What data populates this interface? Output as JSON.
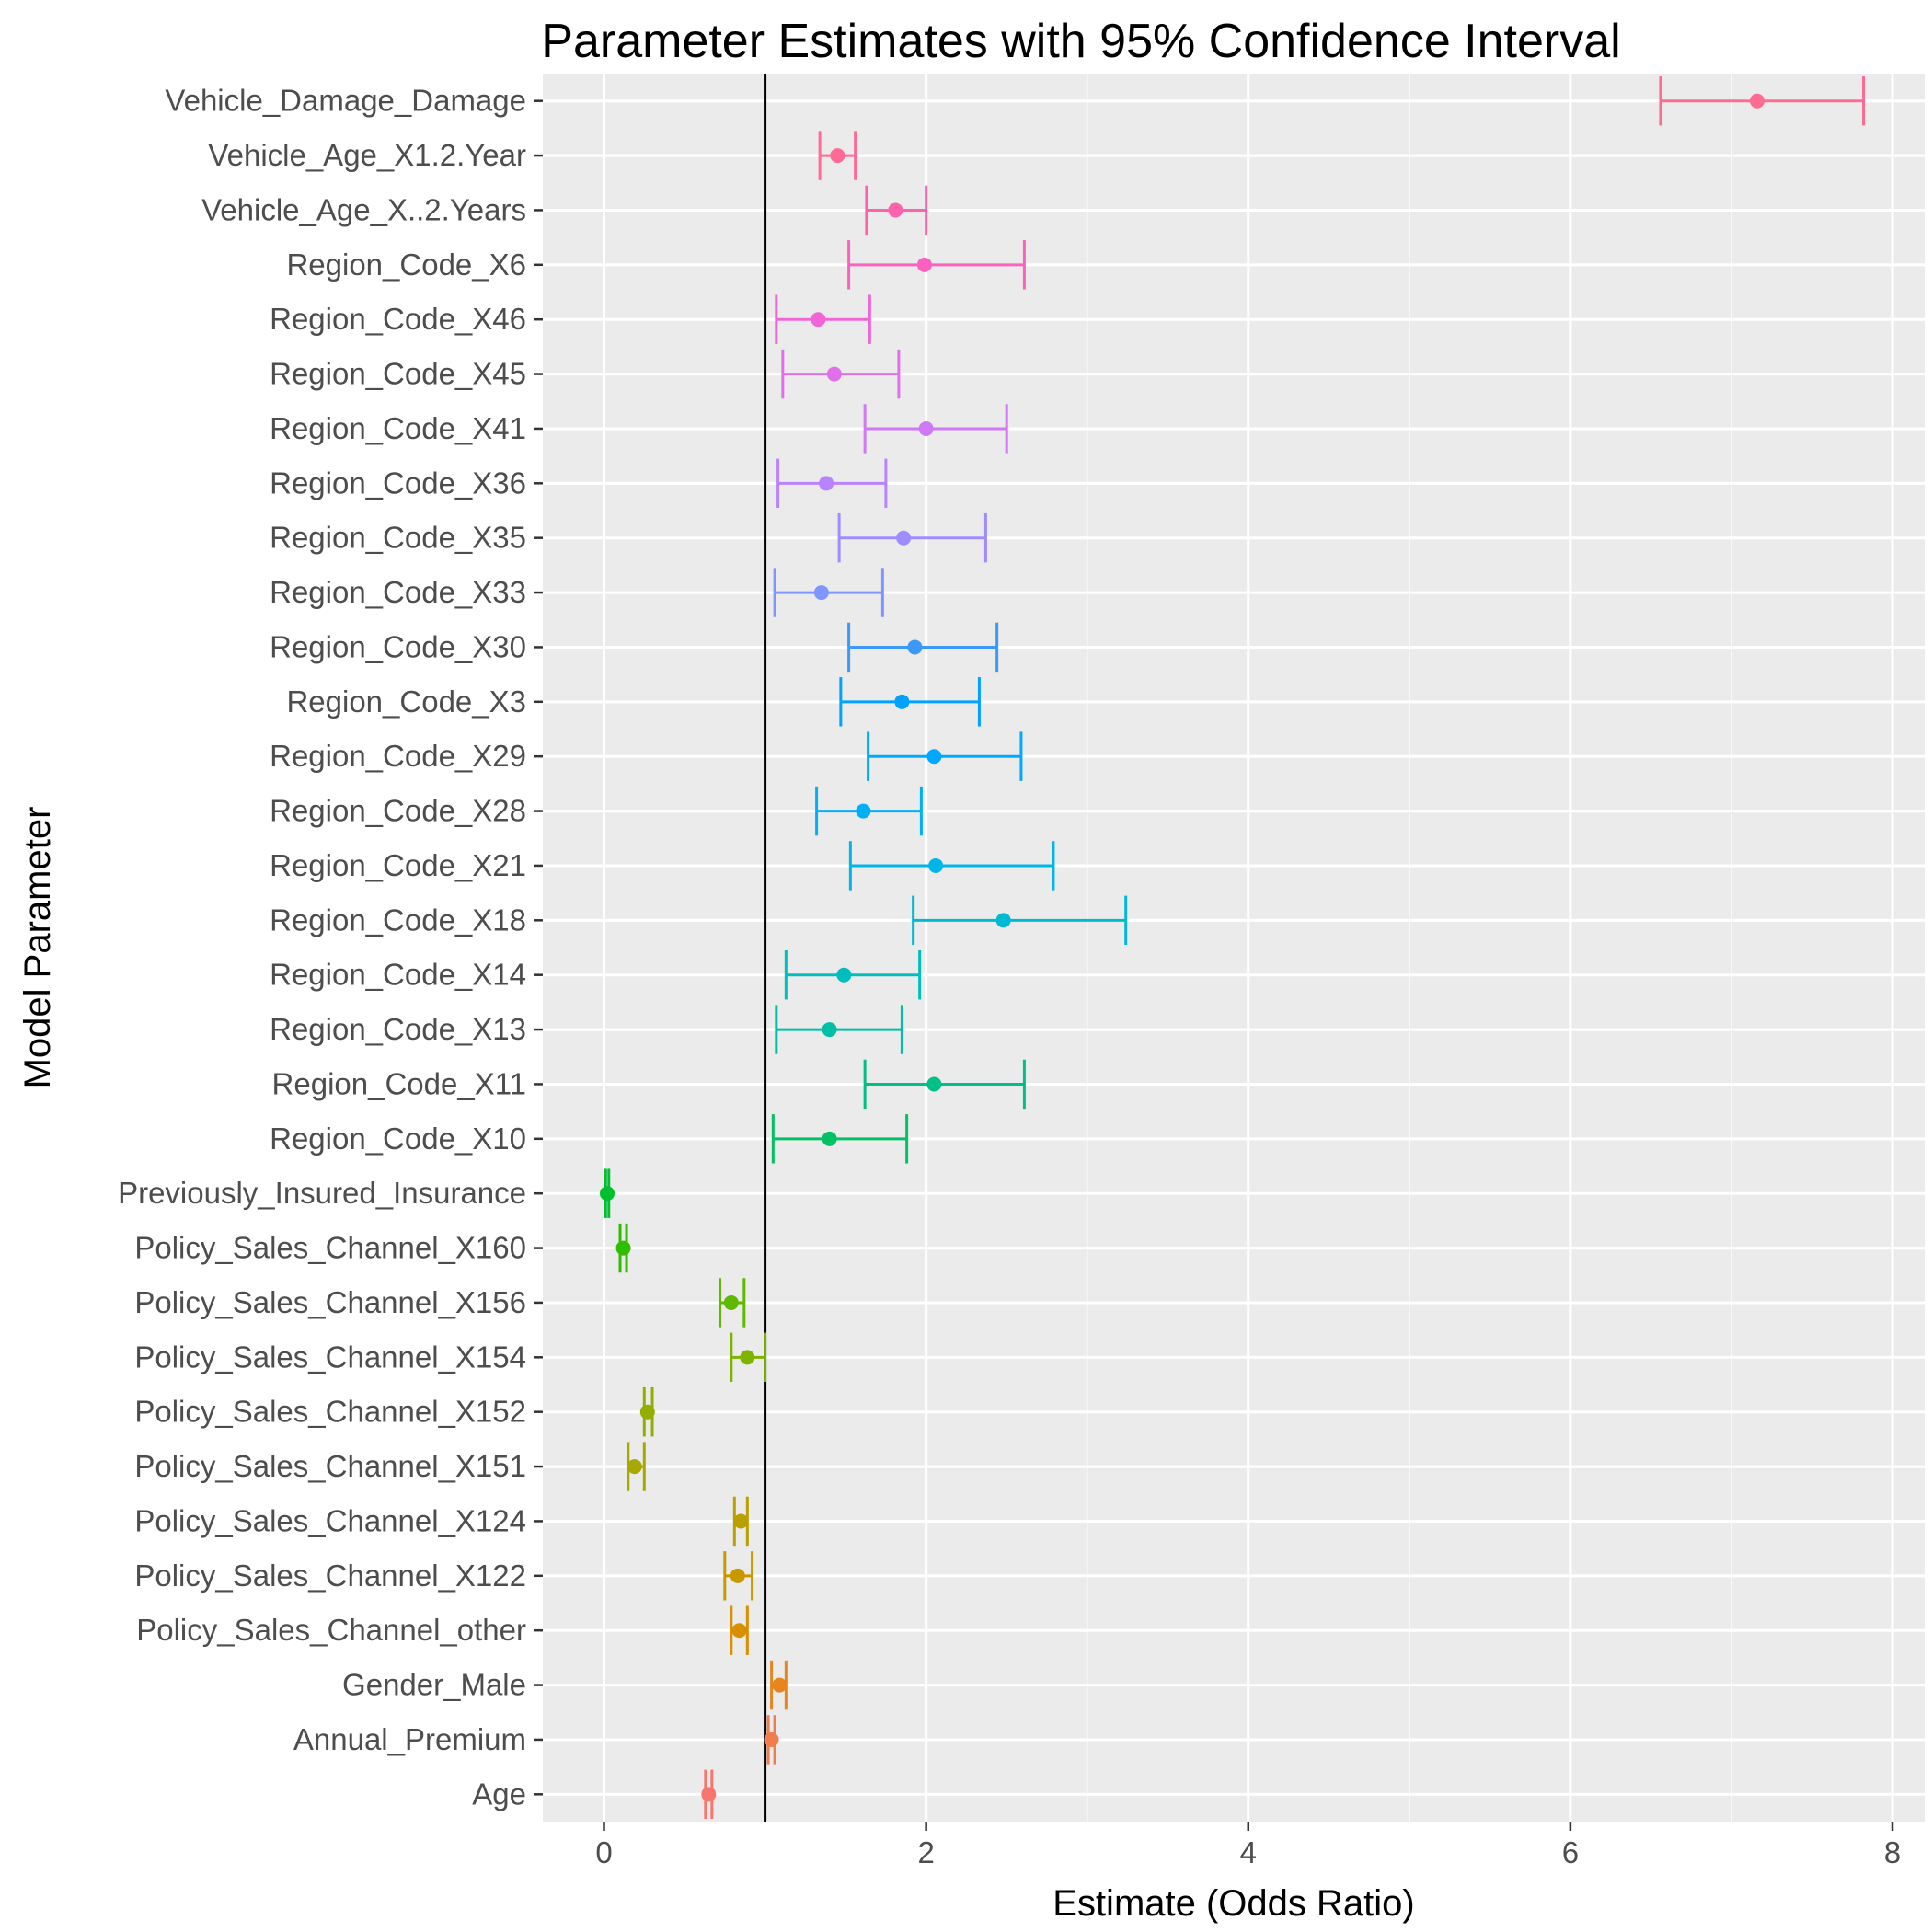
{
  "chart_data": {
    "type": "errorbar",
    "title": "Parameter Estimates with 95% Confidence Interval",
    "xlabel": "Estimate (Odds Ratio)",
    "ylabel": "Model Parameter",
    "xlim": [
      -0.38,
      8.2
    ],
    "x_ticks": [
      0,
      2,
      4,
      6,
      8
    ],
    "reference_line_x": 1,
    "grid": true,
    "params": [
      {
        "name": "Age",
        "estimate": 0.65,
        "lower": 0.63,
        "upper": 0.67,
        "color": "#F8766D"
      },
      {
        "name": "Annual_Premium",
        "estimate": 1.04,
        "lower": 1.02,
        "upper": 1.06,
        "color": "#F17D4D"
      },
      {
        "name": "Gender_Male",
        "estimate": 1.09,
        "lower": 1.04,
        "upper": 1.13,
        "color": "#E6861E"
      },
      {
        "name": "Policy_Sales_Channel_other",
        "estimate": 0.84,
        "lower": 0.79,
        "upper": 0.89,
        "color": "#D89000"
      },
      {
        "name": "Policy_Sales_Channel_X122",
        "estimate": 0.83,
        "lower": 0.75,
        "upper": 0.92,
        "color": "#C99800"
      },
      {
        "name": "Policy_Sales_Channel_X124",
        "estimate": 0.85,
        "lower": 0.81,
        "upper": 0.89,
        "color": "#B9A000"
      },
      {
        "name": "Policy_Sales_Channel_X151",
        "estimate": 0.19,
        "lower": 0.15,
        "upper": 0.25,
        "color": "#A7A800"
      },
      {
        "name": "Policy_Sales_Channel_X152",
        "estimate": 0.27,
        "lower": 0.25,
        "upper": 0.3,
        "color": "#93AE00"
      },
      {
        "name": "Policy_Sales_Channel_X154",
        "estimate": 0.89,
        "lower": 0.79,
        "upper": 1.0,
        "color": "#7CB400"
      },
      {
        "name": "Policy_Sales_Channel_X156",
        "estimate": 0.79,
        "lower": 0.72,
        "upper": 0.87,
        "color": "#5EB900"
      },
      {
        "name": "Policy_Sales_Channel_X160",
        "estimate": 0.12,
        "lower": 0.1,
        "upper": 0.14,
        "color": "#2EBD00"
      },
      {
        "name": "Previously_Insured_Insurance",
        "estimate": 0.02,
        "lower": 0.01,
        "upper": 0.03,
        "color": "#00C030"
      },
      {
        "name": "Region_Code_X10",
        "estimate": 1.4,
        "lower": 1.05,
        "upper": 1.88,
        "color": "#00C164"
      },
      {
        "name": "Region_Code_X11",
        "estimate": 2.05,
        "lower": 1.62,
        "upper": 2.61,
        "color": "#00C088"
      },
      {
        "name": "Region_Code_X13",
        "estimate": 1.4,
        "lower": 1.07,
        "upper": 1.85,
        "color": "#00BFA5"
      },
      {
        "name": "Region_Code_X14",
        "estimate": 1.49,
        "lower": 1.13,
        "upper": 1.96,
        "color": "#00BDBE"
      },
      {
        "name": "Region_Code_X18",
        "estimate": 2.48,
        "lower": 1.92,
        "upper": 3.24,
        "color": "#00BAD4"
      },
      {
        "name": "Region_Code_X21",
        "estimate": 2.06,
        "lower": 1.53,
        "upper": 2.79,
        "color": "#00B6E8"
      },
      {
        "name": "Region_Code_X28",
        "estimate": 1.61,
        "lower": 1.32,
        "upper": 1.97,
        "color": "#00B0F6"
      },
      {
        "name": "Region_Code_X29",
        "estimate": 2.05,
        "lower": 1.64,
        "upper": 2.59,
        "color": "#00A9FF"
      },
      {
        "name": "Region_Code_X3",
        "estimate": 1.85,
        "lower": 1.47,
        "upper": 2.33,
        "color": "#00A1FF"
      },
      {
        "name": "Region_Code_X30",
        "estimate": 1.93,
        "lower": 1.52,
        "upper": 2.44,
        "color": "#3D99F6"
      },
      {
        "name": "Region_Code_X33",
        "estimate": 1.35,
        "lower": 1.06,
        "upper": 1.73,
        "color": "#7F96FF"
      },
      {
        "name": "Region_Code_X35",
        "estimate": 1.86,
        "lower": 1.46,
        "upper": 2.37,
        "color": "#9F8CFF"
      },
      {
        "name": "Region_Code_X36",
        "estimate": 1.38,
        "lower": 1.08,
        "upper": 1.75,
        "color": "#B983FF"
      },
      {
        "name": "Region_Code_X41",
        "estimate": 2.0,
        "lower": 1.62,
        "upper": 2.5,
        "color": "#CF79F7"
      },
      {
        "name": "Region_Code_X45",
        "estimate": 1.43,
        "lower": 1.11,
        "upper": 1.83,
        "color": "#E26FEA"
      },
      {
        "name": "Region_Code_X46",
        "estimate": 1.33,
        "lower": 1.07,
        "upper": 1.65,
        "color": "#F066D6"
      },
      {
        "name": "Region_Code_X6",
        "estimate": 1.99,
        "lower": 1.52,
        "upper": 2.61,
        "color": "#FB61C1"
      },
      {
        "name": "Vehicle_Age_X..2.Years",
        "estimate": 1.81,
        "lower": 1.63,
        "upper": 2.0,
        "color": "#FF62AC"
      },
      {
        "name": "Vehicle_Age_X1.2.Year",
        "estimate": 1.45,
        "lower": 1.34,
        "upper": 1.56,
        "color": "#FF6A97"
      },
      {
        "name": "Vehicle_Damage_Damage",
        "estimate": 7.16,
        "lower": 6.56,
        "upper": 7.82,
        "color": "#FF6C91"
      }
    ]
  }
}
